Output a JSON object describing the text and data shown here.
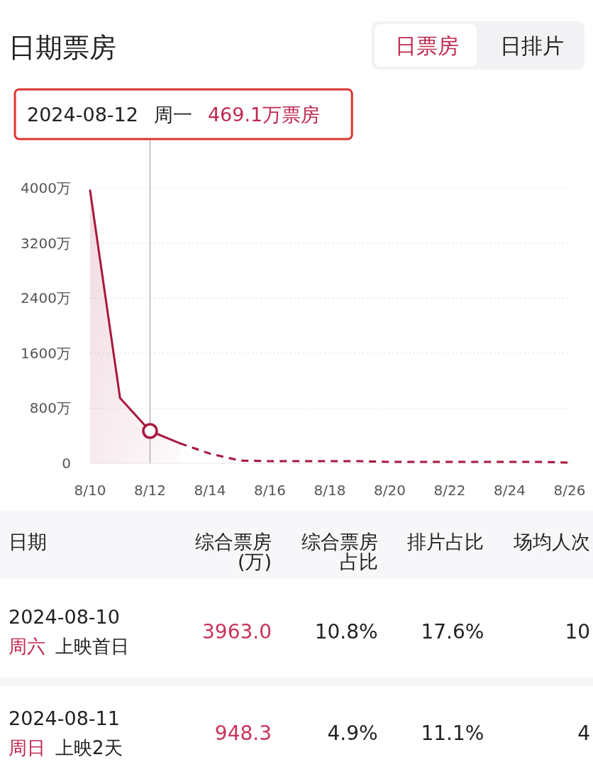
{
  "chart_data": [
    {
      "type": "line",
      "title": "日期票房",
      "annotations": [
        "2024-08-12 周一 469.1万票房",
        "日票房",
        "日排片"
      ],
      "series": [
        {
          "type": "area",
          "color": "#a8183e",
          "x": [
            "2024-08-10",
            "2024-08-11",
            "2024-08-12",
            "2024-08-13"
          ],
          "values": [
            3963,
            948.3,
            469.1,
            290
          ]
        },
        {
          "type": "line",
          "line_style": "dashed",
          "color": "#a8183e",
          "x": [
            "2024-08-13",
            "2024-08-14",
            "2024-08-15",
            "2024-08-16",
            "2024-08-17",
            "2024-08-18",
            "2024-08-19",
            "2024-08-20",
            "2024-08-21",
            "2024-08-22",
            "2024-08-23",
            "2024-08-24",
            "2024-08-25",
            "2024-08-26"
          ],
          "values": [
            290,
            140,
            40,
            30,
            30,
            30,
            30,
            20,
            20,
            20,
            20,
            20,
            20,
            10
          ]
        },
        {
          "type": "scatter",
          "marker": "circle",
          "color": "#a8183e",
          "x": [
            "2024-08-12"
          ],
          "values": [
            469.1
          ]
        }
      ],
      "xlim": [
        "2024-08-10",
        "2024-08-26"
      ],
      "xticks": [
        {
          "value": "2024-08-10",
          "label": "8/10"
        },
        {
          "value": "2024-08-12",
          "label": "8/12"
        },
        {
          "value": "2024-08-14",
          "label": "8/14"
        },
        {
          "value": "2024-08-16",
          "label": "8/16"
        },
        {
          "value": "2024-08-18",
          "label": "8/18"
        },
        {
          "value": "2024-08-20",
          "label": "8/20"
        },
        {
          "value": "2024-08-22",
          "label": "8/22"
        },
        {
          "value": "2024-08-24",
          "label": "8/24"
        },
        {
          "value": "2024-08-26",
          "label": "8/26"
        }
      ],
      "ylim": [
        0,
        4000
      ],
      "yticks": [
        0,
        {
          "value": 800,
          "label": "800万"
        },
        {
          "value": 1600,
          "label": "1600万"
        },
        {
          "value": 2400,
          "label": "2400万"
        },
        {
          "value": 3200,
          "label": "3200万"
        },
        {
          "value": 4000,
          "label": "4000万"
        }
      ],
      "grid": "y",
      "ref_lines": [
        {
          "axis": "x",
          "value": "2024-08-12",
          "color": "#9a9a9a"
        }
      ]
    },
    {
      "type": "other",
      "categories": [
        "日期",
        "综合票房(万)",
        "综合票房占比",
        "排片占比",
        "场均人次"
      ],
      "y_categories": [
        "2024-08-10",
        "2024-08-11"
      ],
      "y2_categories": [
        "周六 上映首日",
        "周日 上映2天"
      ],
      "cell_labels": [
        [
          "3963.0",
          "10.8%",
          "17.6%",
          "10"
        ],
        [
          "948.3",
          "4.9%",
          "11.1%",
          "4"
        ]
      ]
    }
  ]
}
